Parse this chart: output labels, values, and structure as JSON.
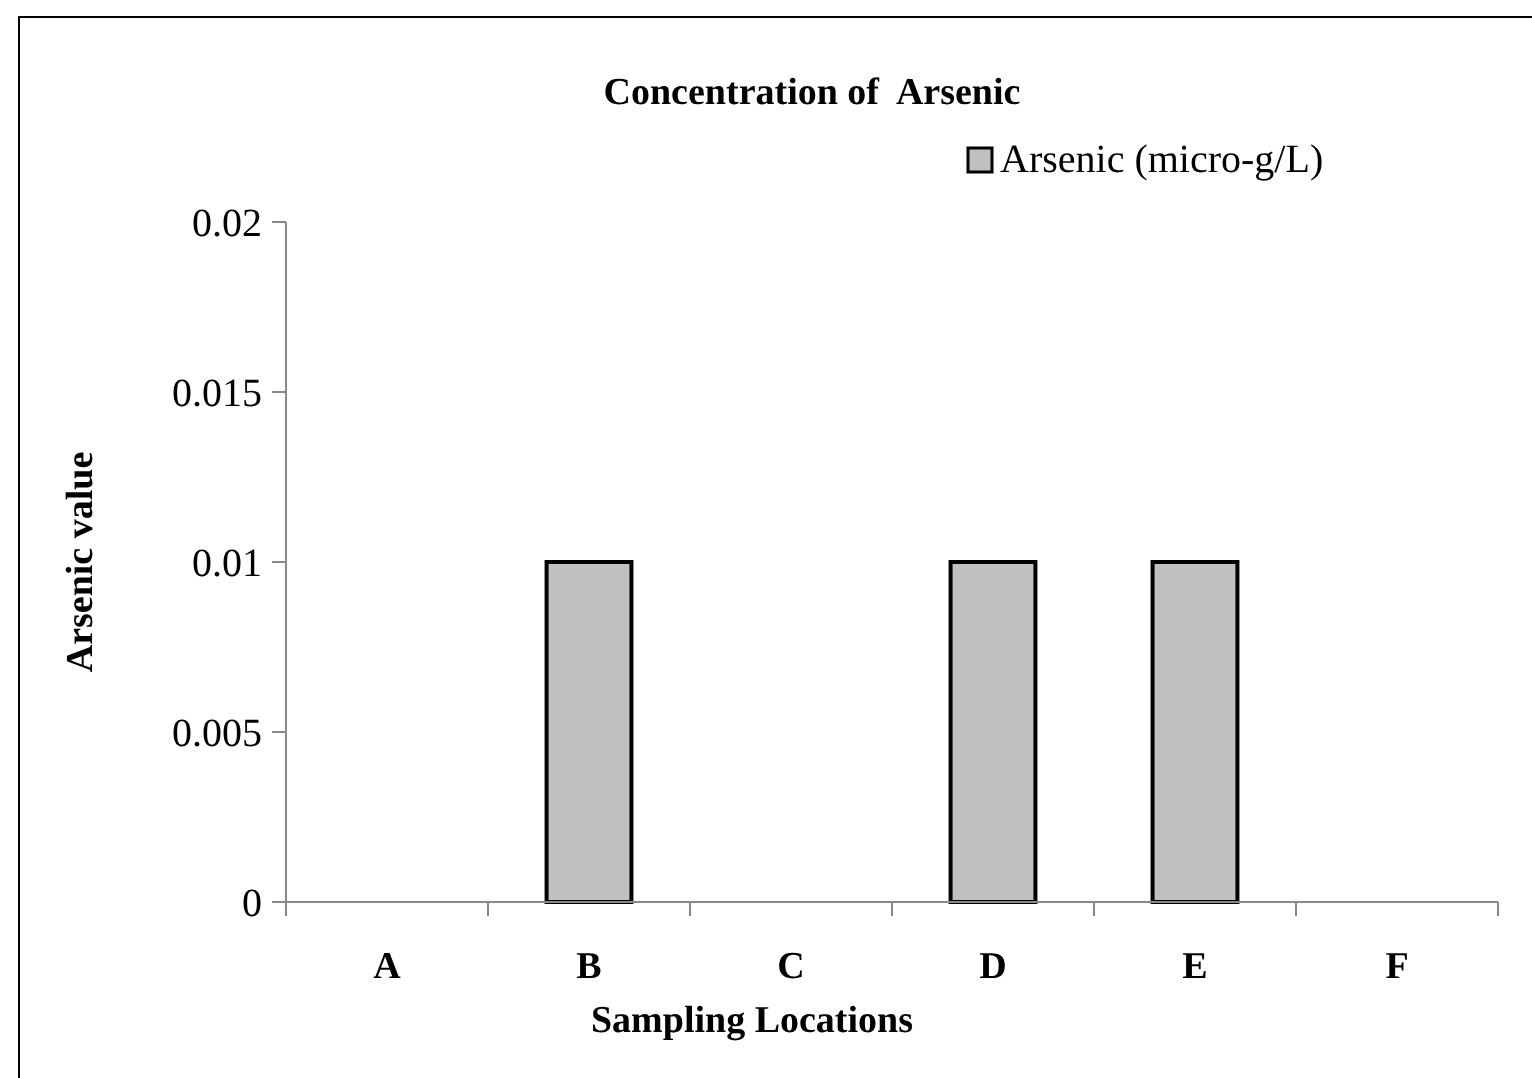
{
  "chart_data": {
    "type": "bar",
    "title": "Concentration of  Arsenic",
    "xlabel": "Sampling Locations",
    "ylabel": "Arsenic value",
    "categories": [
      "A",
      "B",
      "C",
      "D",
      "E",
      "F"
    ],
    "series": [
      {
        "name": "Arsenic (micro-g/L)",
        "color": "#c0c0c0",
        "values": [
          0,
          0.01,
          0,
          0.01,
          0.01,
          0
        ]
      }
    ],
    "ylim": [
      0,
      0.02
    ],
    "yticks": [
      0,
      0.005,
      0.01,
      0.015,
      0.02
    ],
    "grid": false,
    "legend": "top right"
  }
}
